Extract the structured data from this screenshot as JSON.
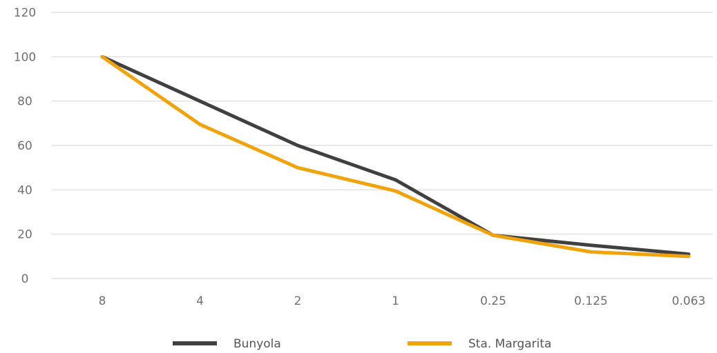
{
  "chart_data": {
    "type": "line",
    "categories": [
      "8",
      "4",
      "2",
      "1",
      "0.25",
      "0.125",
      "0.063"
    ],
    "series": [
      {
        "name": "Bunyola",
        "values": [
          100,
          80,
          60,
          44.5,
          19.5,
          15,
          11
        ],
        "color": "#404040"
      },
      {
        "name": "Sta. Margarita",
        "values": [
          100,
          69.5,
          50,
          39.5,
          19.5,
          12,
          10
        ],
        "color": "#f0a30a"
      }
    ],
    "y_ticks": [
      "0",
      "20",
      "40",
      "60",
      "80",
      "100",
      "120"
    ],
    "ylim": [
      0,
      120
    ],
    "grid": true,
    "gridline_color": "#d9d9d9",
    "legend_position": "bottom"
  }
}
